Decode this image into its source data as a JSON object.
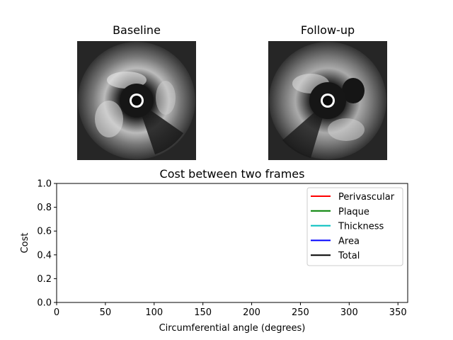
{
  "panels": {
    "left": {
      "title": "Baseline"
    },
    "right": {
      "title": "Follow-up"
    }
  },
  "chart_data": {
    "type": "line",
    "title": "Cost between two frames",
    "xlabel": "Circumferential angle (degrees)",
    "ylabel": "Cost",
    "xlim": [
      0,
      360
    ],
    "ylim": [
      0,
      1.0
    ],
    "xticks": [
      0,
      50,
      100,
      150,
      200,
      250,
      300,
      350
    ],
    "yticks": [
      0.0,
      0.2,
      0.4,
      0.6,
      0.8,
      1.0
    ],
    "ytick_labels": [
      "0.0",
      "0.2",
      "0.4",
      "0.6",
      "0.8",
      "1.0"
    ],
    "legend_position": "upper-right",
    "series": [
      {
        "name": "Perivascular",
        "color": "#ff0000",
        "x": [],
        "values": []
      },
      {
        "name": "Plaque",
        "color": "#008000",
        "x": [],
        "values": []
      },
      {
        "name": "Thickness",
        "color": "#00bfbf",
        "x": [],
        "values": []
      },
      {
        "name": "Area",
        "color": "#0000ff",
        "x": [],
        "values": []
      },
      {
        "name": "Total",
        "color": "#000000",
        "x": [],
        "values": []
      }
    ]
  }
}
